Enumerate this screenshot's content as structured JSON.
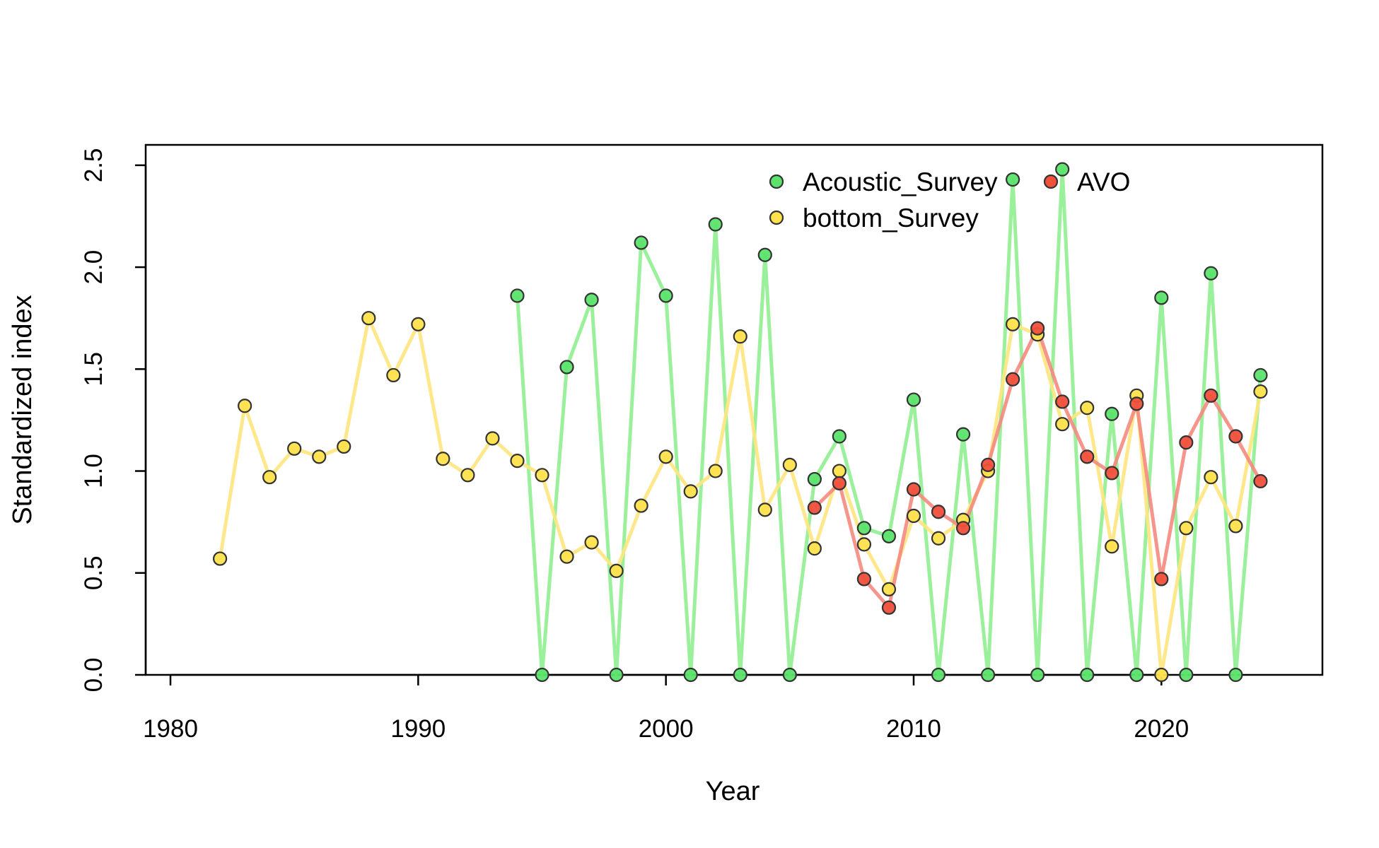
{
  "chart_data": {
    "type": "line",
    "title": "",
    "xlabel": "Year",
    "ylabel": "Standardized index",
    "xlim": [
      1979,
      2026.5
    ],
    "ylim": [
      0,
      2.6
    ],
    "xticks": [
      1980,
      1990,
      2000,
      2010,
      2020
    ],
    "xtick_labels": [
      "1980",
      "1990",
      "2000",
      "2010",
      "2020"
    ],
    "yticks": [
      0,
      0.5,
      1,
      1.5,
      2,
      2.5
    ],
    "ytick_labels": [
      "0.0",
      "0.5",
      "1.0",
      "1.5",
      "2.0",
      "2.5"
    ],
    "grid": false,
    "legend_position": "top-right",
    "series": [
      {
        "name": "Acoustic_Survey",
        "line_color": "#90EE90",
        "point_color": "#5BE36B",
        "x": [
          1994,
          1995,
          1996,
          1997,
          1998,
          1999,
          2000,
          2001,
          2002,
          2003,
          2004,
          2005,
          2006,
          2007,
          2008,
          2009,
          2010,
          2011,
          2012,
          2013,
          2014,
          2015,
          2016,
          2017,
          2018,
          2019,
          2020,
          2021,
          2022,
          2023,
          2024
        ],
        "y": [
          1.86,
          0.0,
          1.51,
          1.84,
          0.0,
          2.12,
          1.86,
          0.0,
          2.21,
          0.0,
          2.06,
          0.0,
          0.96,
          1.17,
          0.72,
          0.68,
          1.35,
          0.0,
          1.18,
          0.0,
          2.43,
          0.0,
          2.48,
          0.0,
          1.28,
          0.0,
          1.85,
          0.0,
          1.97,
          0.0,
          1.47
        ]
      },
      {
        "name": "bottom_Survey",
        "line_color": "#FFE680",
        "point_color": "#FFE14D",
        "x": [
          1982,
          1983,
          1984,
          1985,
          1986,
          1987,
          1988,
          1989,
          1990,
          1991,
          1992,
          1993,
          1994,
          1995,
          1996,
          1997,
          1998,
          1999,
          2000,
          2001,
          2002,
          2003,
          2004,
          2005,
          2006,
          2007,
          2008,
          2009,
          2010,
          2011,
          2012,
          2013,
          2014,
          2015,
          2016,
          2017,
          2018,
          2019,
          2020,
          2021,
          2022,
          2023,
          2024
        ],
        "y": [
          0.57,
          1.32,
          0.97,
          1.11,
          1.07,
          1.12,
          1.75,
          1.47,
          1.72,
          1.06,
          0.98,
          1.16,
          1.05,
          0.98,
          0.58,
          0.65,
          0.51,
          0.83,
          1.07,
          0.9,
          1.0,
          1.66,
          0.81,
          1.03,
          0.62,
          1.0,
          0.64,
          0.42,
          0.78,
          0.67,
          0.76,
          1.0,
          1.72,
          1.67,
          1.23,
          1.31,
          0.63,
          1.37,
          0.0,
          0.72,
          0.97,
          0.73,
          1.39
        ]
      },
      {
        "name": "AVO",
        "line_color": "#F48A7E",
        "point_color": "#F0503C",
        "x": [
          2006,
          2007,
          2008,
          2009,
          2010,
          2011,
          2012,
          2013,
          2014,
          2015,
          2016,
          2017,
          2018,
          2019,
          2020,
          2021,
          2022,
          2023,
          2024
        ],
        "y": [
          0.82,
          0.94,
          0.47,
          0.33,
          0.91,
          0.8,
          0.72,
          1.03,
          1.45,
          1.7,
          1.34,
          1.07,
          0.99,
          1.33,
          0.47,
          1.14,
          1.37,
          1.17,
          0.95
        ]
      }
    ]
  }
}
